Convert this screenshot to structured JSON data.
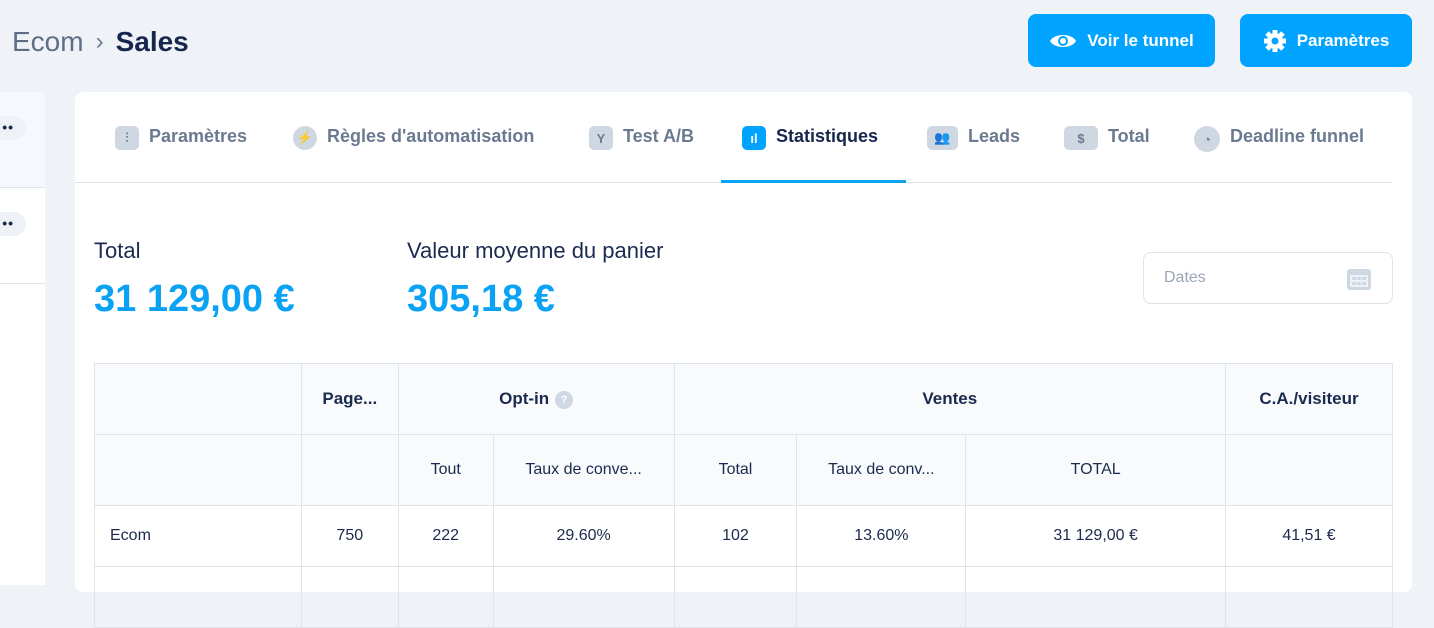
{
  "breadcrumb": {
    "items": [
      "Ecom",
      "Sales"
    ]
  },
  "header": {
    "view_funnel": "Voir le tunnel",
    "settings": "Paramètres"
  },
  "tabs": [
    {
      "label": "Paramètres",
      "icon": "sliders-icon"
    },
    {
      "label": "Règles d'automatisation",
      "icon": "bolt-icon"
    },
    {
      "label": "Test A/B",
      "icon": "split-icon"
    },
    {
      "label": "Statistiques",
      "icon": "bar-chart-icon",
      "active": true
    },
    {
      "label": "Leads",
      "icon": "users-icon"
    },
    {
      "label": "Total",
      "icon": "dollar-icon"
    },
    {
      "label": "Deadline funnel",
      "icon": "clock-icon"
    }
  ],
  "stats": {
    "total_label": "Total",
    "total_value": "31 129,00 €",
    "avg_label": "Valeur moyenne du panier",
    "avg_value": "305,18 €"
  },
  "dates": {
    "placeholder": "Dates"
  },
  "table": {
    "groups": [
      "",
      "Page...",
      "Opt-in",
      "Ventes",
      "C.A./visiteur"
    ],
    "subheaders": [
      "",
      "",
      "Tout",
      "Taux de conve...",
      "Total",
      "Taux de conv...",
      "TOTAL",
      ""
    ],
    "rows": [
      [
        "Ecom",
        "750",
        "222",
        "29.60%",
        "102",
        "13.60%",
        "31 129,00 €",
        "41,51 €"
      ]
    ]
  },
  "colors": {
    "accent": "#00a3ff"
  }
}
